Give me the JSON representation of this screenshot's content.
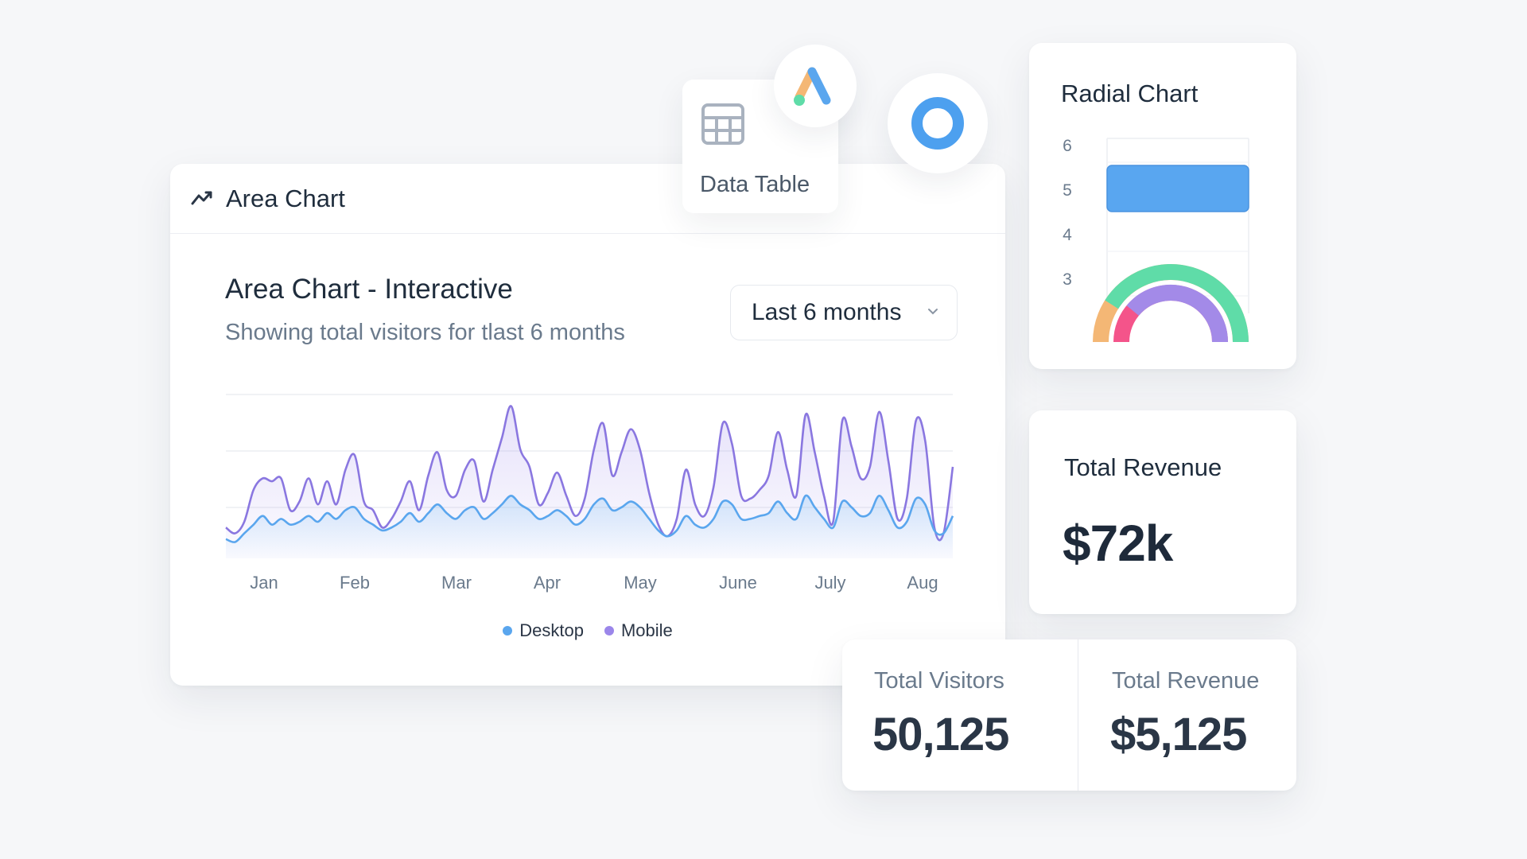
{
  "area_card": {
    "header_title": "Area Chart",
    "header_icon": "trend-line-icon",
    "chart_title": "Area Chart - Interactive",
    "chart_subtitle": "Showing total visitors for tlast 6 months",
    "range_select": {
      "value": "Last 6 months",
      "icon": "chevron-down-icon"
    },
    "legend": [
      {
        "label": "Desktop",
        "color": "#5aa6ee"
      },
      {
        "label": "Mobile",
        "color": "#9b86ea"
      }
    ]
  },
  "data_table": {
    "label": "Data Table",
    "icon": "table-grid-icon"
  },
  "floating_icons": {
    "logo": "ads-logo-icon",
    "ring": "ring-icon"
  },
  "radial_card": {
    "title": "Radial Chart"
  },
  "revenue_card": {
    "label": "Total Revenue",
    "value": "$72k"
  },
  "stats": [
    {
      "label": "Total Visitors",
      "value": "50,125"
    },
    {
      "label": "Total Revenue",
      "value": "$5,125"
    }
  ],
  "chart_data": [
    {
      "type": "area",
      "title": "Area Chart - Interactive",
      "x_tick_labels": [
        "Jan",
        "Feb",
        "Mar",
        "Apr",
        "May",
        "June",
        "July",
        "Aug"
      ],
      "grid": true,
      "legend_position": "bottom-center",
      "series": [
        {
          "name": "Mobile",
          "color": "#8a77e0",
          "values": [
            18,
            14,
            22,
            44,
            52,
            50,
            52,
            30,
            36,
            52,
            34,
            50,
            34,
            58,
            68,
            36,
            30,
            18,
            24,
            36,
            50,
            30,
            54,
            70,
            44,
            40,
            58,
            64,
            36,
            58,
            80,
            102,
            72,
            60,
            34,
            42,
            56,
            40,
            26,
            38,
            72,
            90,
            54,
            70,
            86,
            72,
            42,
            20,
            12,
            24,
            58,
            34,
            26,
            46,
            90,
            76,
            40,
            38,
            44,
            54,
            84,
            58,
            40,
            96,
            70,
            40,
            22,
            92,
            74,
            52,
            60,
            98,
            64,
            24,
            38,
            92,
            78,
            18,
            14,
            60
          ]
        },
        {
          "name": "Desktop",
          "color": "#5aa6ee",
          "values": [
            10,
            8,
            14,
            20,
            26,
            20,
            24,
            20,
            22,
            26,
            22,
            28,
            24,
            30,
            32,
            24,
            20,
            16,
            18,
            22,
            28,
            22,
            28,
            34,
            28,
            24,
            30,
            32,
            24,
            28,
            34,
            40,
            34,
            30,
            24,
            26,
            30,
            26,
            20,
            24,
            34,
            38,
            30,
            32,
            36,
            32,
            24,
            16,
            12,
            16,
            26,
            20,
            18,
            24,
            36,
            34,
            24,
            24,
            26,
            28,
            36,
            28,
            24,
            40,
            32,
            24,
            18,
            36,
            32,
            26,
            28,
            40,
            30,
            18,
            22,
            38,
            34,
            16,
            14,
            26
          ]
        }
      ]
    },
    {
      "type": "bar",
      "title": "Radial Chart",
      "orientation": "horizontal",
      "y_tick_labels": [
        "6",
        "5",
        "4",
        "3"
      ],
      "categories": [
        "5"
      ],
      "values": [
        1
      ],
      "color": "#59a6f0"
    },
    {
      "type": "pie",
      "subtype": "radial-semicircle",
      "rings": [
        {
          "color": "#5fdca8",
          "value": 0.82,
          "track_color": "#f4b775"
        },
        {
          "color": "#a38ae8",
          "value": 0.78,
          "track_color": "#f4548a"
        }
      ]
    }
  ]
}
